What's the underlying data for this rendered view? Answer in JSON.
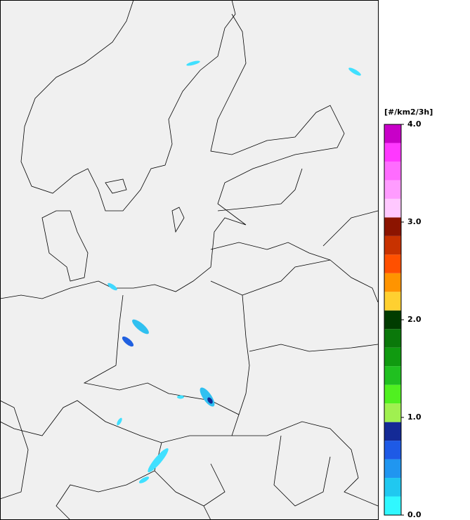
{
  "colorbar": {
    "title": "[#/km2/3h]",
    "range": [
      0,
      4
    ],
    "ticks": [
      {
        "value": 0,
        "label": "0.0"
      },
      {
        "value": 1,
        "label": "1.0"
      },
      {
        "value": 2,
        "label": "2.0"
      },
      {
        "value": 3,
        "label": "3.0"
      },
      {
        "value": 4,
        "label": "4.0"
      }
    ],
    "colors": [
      "#30f8ff",
      "#20c8f0",
      "#2096f0",
      "#1e5ae6",
      "#142a96",
      "#a0f050",
      "#50f020",
      "#20c020",
      "#109a10",
      "#0a780a",
      "#003c00",
      "#ffd030",
      "#ff9400",
      "#ff5000",
      "#c83200",
      "#8c1400",
      "#ffc8ff",
      "#ff9cff",
      "#ff6cff",
      "#ff38ff",
      "#c800c8"
    ]
  }
}
